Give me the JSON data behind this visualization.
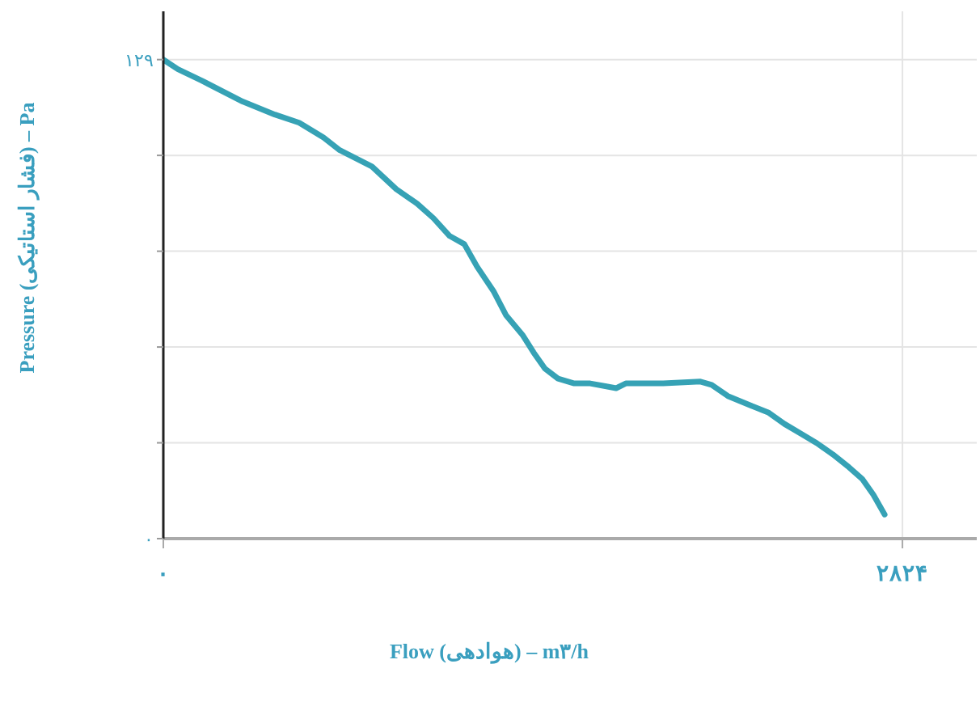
{
  "chart_data": {
    "type": "line",
    "xlabel": "Flow (هوادهی) – m۳/h",
    "ylabel": "Pressure (فشار استاتیکی) – Pa",
    "series": [
      {
        "color": "#36a2b5",
        "x": [
          0,
          56,
          148,
          303,
          426,
          519,
          612,
          674,
          797,
          890,
          970,
          1032,
          1094,
          1150,
          1199,
          1261,
          1310,
          1372,
          1415,
          1458,
          1508,
          1570,
          1631,
          1693,
          1730,
          1767,
          1910,
          2052,
          2095,
          2157,
          2249,
          2311,
          2373,
          2435,
          2497,
          2558,
          2620,
          2670,
          2713,
          2756
        ],
        "values": [
          129,
          126.4,
          123.3,
          117.7,
          114.2,
          112,
          108,
          104.6,
          100.2,
          94.1,
          90.2,
          86.3,
          81.5,
          79.3,
          73.2,
          66.7,
          60.1,
          54.9,
          50.1,
          45.8,
          43.1,
          41.8,
          41.8,
          41,
          40.5,
          41.8,
          41.8,
          42.3,
          41.4,
          38.4,
          35.7,
          34,
          30.9,
          28.3,
          25.7,
          22.7,
          19.2,
          16.1,
          11.8,
          6.5
        ]
      }
    ],
    "xlim": [
      0,
      3108
    ],
    "xticks": [
      {
        "value": 0,
        "label": "۰"
      },
      {
        "value": 2824,
        "label": "۲۸۲۴"
      }
    ],
    "ylim": [
      0,
      142
    ],
    "yticks": [
      {
        "value": 0,
        "label": "۰"
      },
      {
        "value": 25.8,
        "label": null
      },
      {
        "value": 51.6,
        "label": null
      },
      {
        "value": 77.4,
        "label": null
      },
      {
        "value": 103.2,
        "label": null
      },
      {
        "value": 129,
        "label": "۱۲۹"
      }
    ],
    "grid": true,
    "legend": false,
    "marker": "none",
    "line_style": "solid"
  }
}
